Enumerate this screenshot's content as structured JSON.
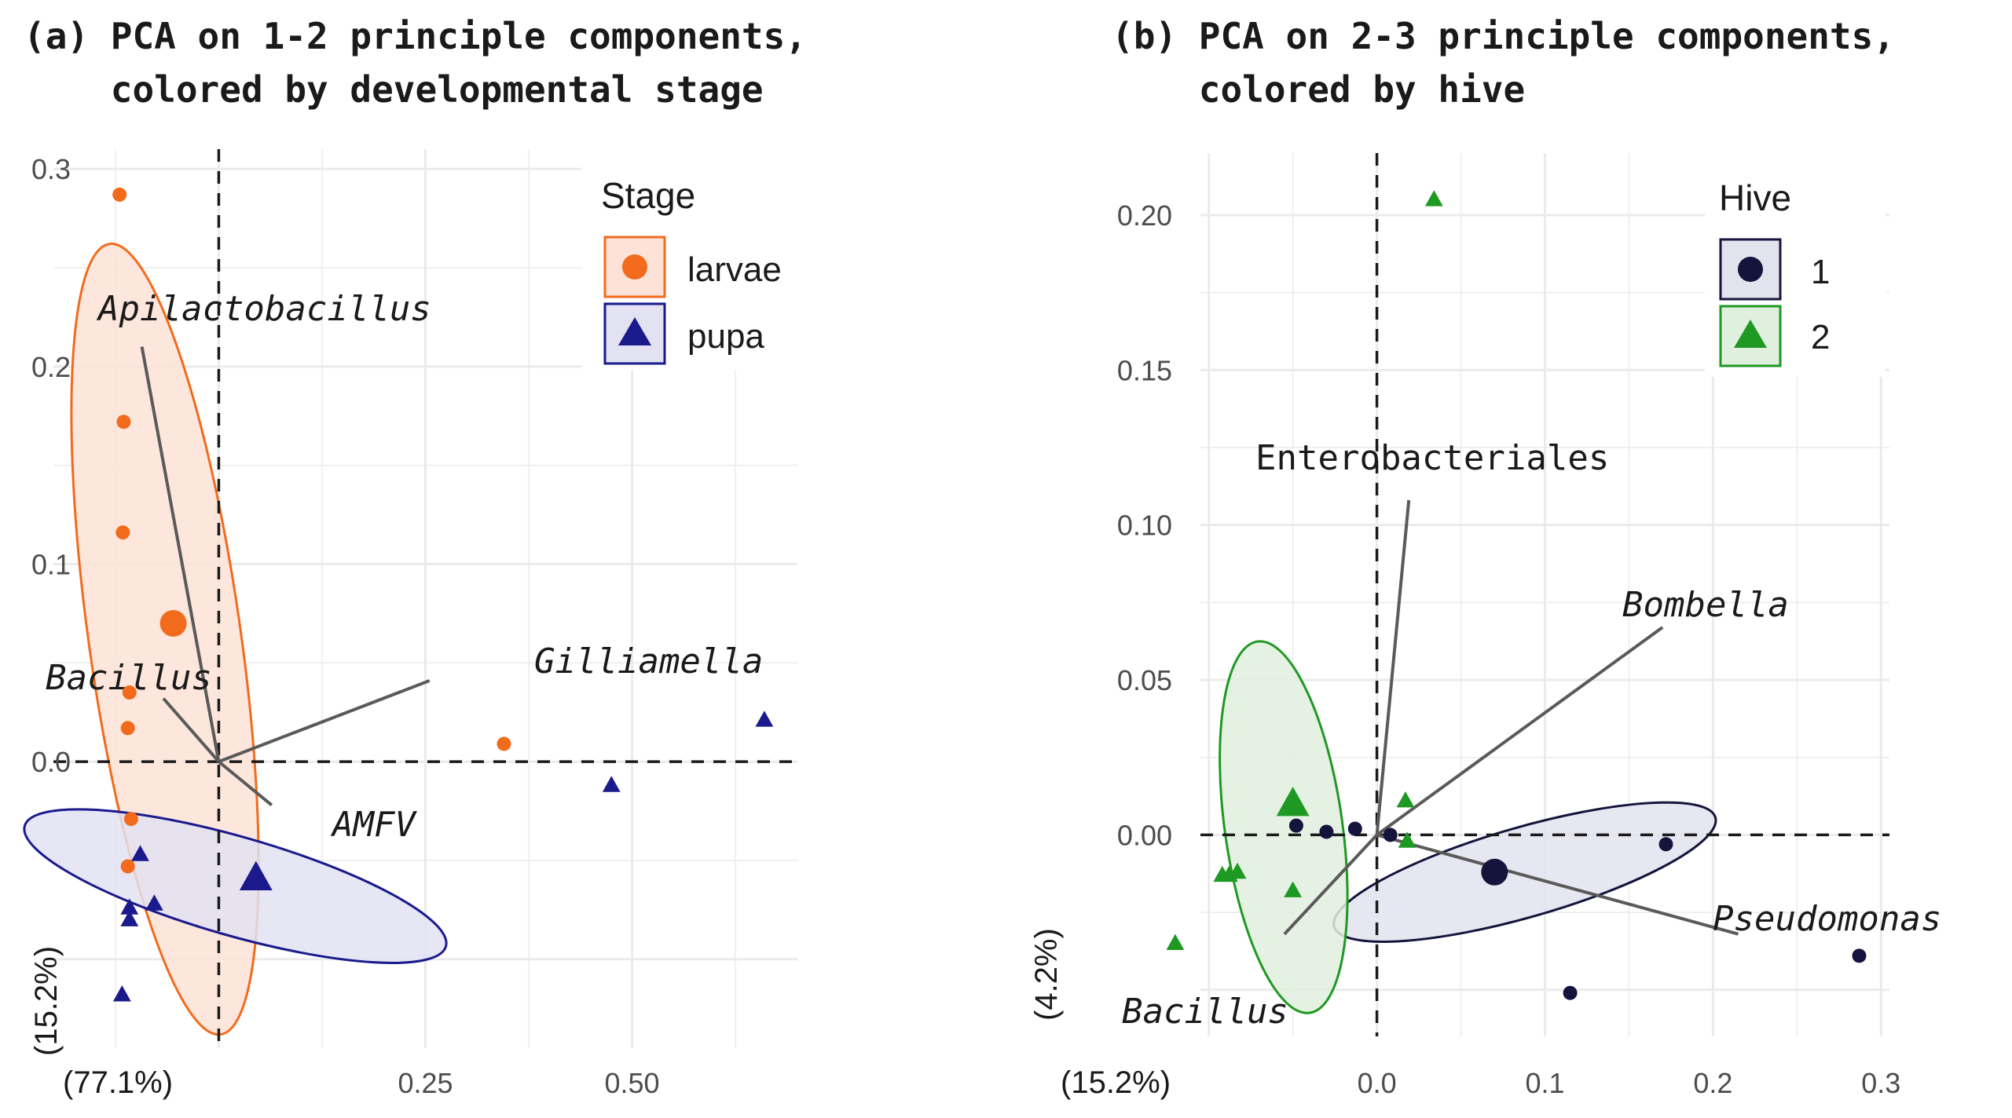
{
  "chart_data": [
    {
      "type": "scatter",
      "title_lines": [
        "(a) PCA on 1-2 principle components,",
        "    colored by developmental stage"
      ],
      "xlabel": "(77.1%)",
      "ylabel": "(15.2%)",
      "xlim": [
        -0.2,
        0.7
      ],
      "ylim": [
        -0.145,
        0.31
      ],
      "xticks": [
        {
          "value": 0.25,
          "label": "0.25"
        },
        {
          "value": 0.5,
          "label": "0.50"
        }
      ],
      "yticks": [
        {
          "value": 0.0,
          "label": "0.0"
        },
        {
          "value": 0.1,
          "label": "0.1"
        },
        {
          "value": 0.2,
          "label": "0.2"
        },
        {
          "value": 0.3,
          "label": "0.3"
        }
      ],
      "grid": true,
      "legend_position": "top-right",
      "legend": {
        "title": "Stage",
        "entries": [
          {
            "key": "larvae",
            "label": "larvae",
            "shape": "circle",
            "color": "#f26b1d"
          },
          {
            "key": "pupa",
            "label": "pupa",
            "shape": "triangle",
            "color": "#1a1a8c"
          }
        ]
      },
      "series": [
        {
          "key": "larvae",
          "shape": "circle",
          "color": "#f26b1d",
          "points": [
            [
              -0.12,
              0.287
            ],
            [
              -0.115,
              0.172
            ],
            [
              -0.116,
              0.116
            ],
            [
              -0.108,
              0.035
            ],
            [
              -0.11,
              0.017
            ],
            [
              -0.106,
              -0.029
            ],
            [
              -0.11,
              -0.053
            ],
            [
              0.345,
              0.009
            ]
          ],
          "centroid": [
            -0.055,
            0.07
          ],
          "ellipse": {
            "cx": -0.065,
            "cy": 0.062,
            "rx": 0.092,
            "ry": 0.202,
            "angle_deg": 8
          },
          "ellipse_fill": "#fde3d7"
        },
        {
          "key": "pupa",
          "shape": "triangle",
          "color": "#1a1a8c",
          "points": [
            [
              -0.095,
              -0.047
            ],
            [
              -0.108,
              -0.074
            ],
            [
              -0.108,
              -0.08
            ],
            [
              -0.078,
              -0.072
            ],
            [
              0.475,
              -0.012
            ],
            [
              0.66,
              0.021
            ],
            [
              -0.117,
              -0.118
            ]
          ],
          "centroid": [
            0.045,
            -0.059
          ],
          "ellipse": {
            "cx": 0.02,
            "cy": -0.063,
            "rx": 0.265,
            "ry": 0.025,
            "angle_deg": -16
          },
          "ellipse_fill": "#e2e2f2"
        }
      ],
      "loadings": [
        {
          "name": "Apilactobacillus",
          "end": [
            -0.093,
            0.21
          ],
          "italic": true
        },
        {
          "name": "Gilliamella",
          "end": [
            0.255,
            0.041
          ],
          "italic": true
        },
        {
          "name": "Bacillus",
          "end": [
            -0.067,
            0.032
          ],
          "italic": true
        },
        {
          "name": "AMFV",
          "end": [
            0.064,
            -0.022
          ],
          "italic": true
        }
      ]
    },
    {
      "type": "scatter",
      "title_lines": [
        "(b) PCA on 2-3 principle components,",
        "    colored by hive"
      ],
      "xlabel": "(15.2%)",
      "ylabel": "(4.2%)",
      "xlim": [
        -0.105,
        0.305
      ],
      "ylim": [
        -0.065,
        0.22
      ],
      "xticks": [
        {
          "value": 0.0,
          "label": "0.0"
        },
        {
          "value": 0.1,
          "label": "0.1"
        },
        {
          "value": 0.2,
          "label": "0.2"
        },
        {
          "value": 0.3,
          "label": "0.3"
        }
      ],
      "yticks": [
        {
          "value": 0.0,
          "label": "0.00"
        },
        {
          "value": 0.05,
          "label": "0.05"
        },
        {
          "value": 0.1,
          "label": "0.10"
        },
        {
          "value": 0.15,
          "label": "0.15"
        },
        {
          "value": 0.2,
          "label": "0.20"
        }
      ],
      "grid": true,
      "legend_position": "top-right",
      "legend": {
        "title": "Hive",
        "entries": [
          {
            "key": "1",
            "label": "1",
            "shape": "circle",
            "color": "#14143c"
          },
          {
            "key": "2",
            "label": "2",
            "shape": "triangle",
            "color": "#1e9922"
          }
        ]
      },
      "series": [
        {
          "key": "1",
          "shape": "circle",
          "color": "#14143c",
          "points": [
            [
              -0.048,
              0.003
            ],
            [
              -0.03,
              0.001
            ],
            [
              -0.013,
              0.002
            ],
            [
              0.008,
              0.0
            ],
            [
              0.172,
              -0.003
            ],
            [
              0.287,
              -0.039
            ],
            [
              0.115,
              -0.051
            ]
          ],
          "centroid": [
            0.07,
            -0.012
          ],
          "ellipse": {
            "cx": 0.088,
            "cy": -0.012,
            "rx": 0.118,
            "ry": 0.0145,
            "angle_deg": 16
          },
          "ellipse_fill": "#e3e3ee"
        },
        {
          "key": "2",
          "shape": "triangle",
          "color": "#1e9922",
          "points": [
            [
              0.034,
              0.205
            ],
            [
              0.017,
              0.011
            ],
            [
              0.018,
              -0.002
            ],
            [
              -0.05,
              -0.018
            ],
            [
              -0.083,
              -0.012
            ],
            [
              -0.088,
              -0.013
            ],
            [
              -0.092,
              -0.013
            ],
            [
              -0.12,
              -0.035
            ]
          ],
          "centroid": [
            -0.05,
            0.01
          ],
          "ellipse": {
            "cx": -0.0555,
            "cy": 0.0025,
            "rx": 0.035,
            "ry": 0.0605,
            "angle_deg": 8
          },
          "ellipse_fill": "#e0f0de"
        }
      ],
      "loadings": [
        {
          "name": "Enterobacteriales",
          "end": [
            0.019,
            0.108
          ],
          "italic": false
        },
        {
          "name": "Bombella",
          "end": [
            0.17,
            0.067
          ],
          "italic": true
        },
        {
          "name": "Pseudomonas",
          "end": [
            0.215,
            -0.032
          ],
          "italic": true
        },
        {
          "name": "Bacillus",
          "end": [
            -0.055,
            -0.032
          ],
          "italic": true
        }
      ]
    }
  ]
}
